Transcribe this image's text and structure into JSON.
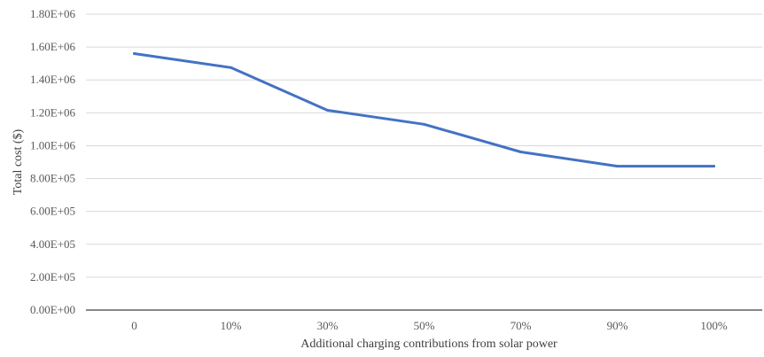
{
  "chart_data": {
    "type": "line",
    "title": "",
    "xlabel": "Additional charging contributions from solar power",
    "ylabel": "Total cost ($)",
    "categories": [
      "0",
      "10%",
      "30%",
      "50%",
      "70%",
      "90%",
      "100%"
    ],
    "series": [
      {
        "values": [
          1560000,
          1475000,
          1215000,
          1130000,
          962000,
          875000,
          875000
        ],
        "color": "#4472c4"
      }
    ],
    "y_ticks": [
      0,
      200000,
      400000,
      600000,
      800000,
      1000000,
      1200000,
      1400000,
      1600000,
      1800000
    ],
    "y_tick_labels": [
      "0.00E+00",
      "2.00E+05",
      "4.00E+05",
      "6.00E+05",
      "8.00E+05",
      "1.00E+06",
      "1.20E+06",
      "1.40E+06",
      "1.60E+06",
      "1.80E+06"
    ],
    "ylim": [
      0,
      1800000
    ],
    "grid": true,
    "gridline_color": "#d9d9d9",
    "axis_color": "#404040",
    "legend": "none"
  }
}
